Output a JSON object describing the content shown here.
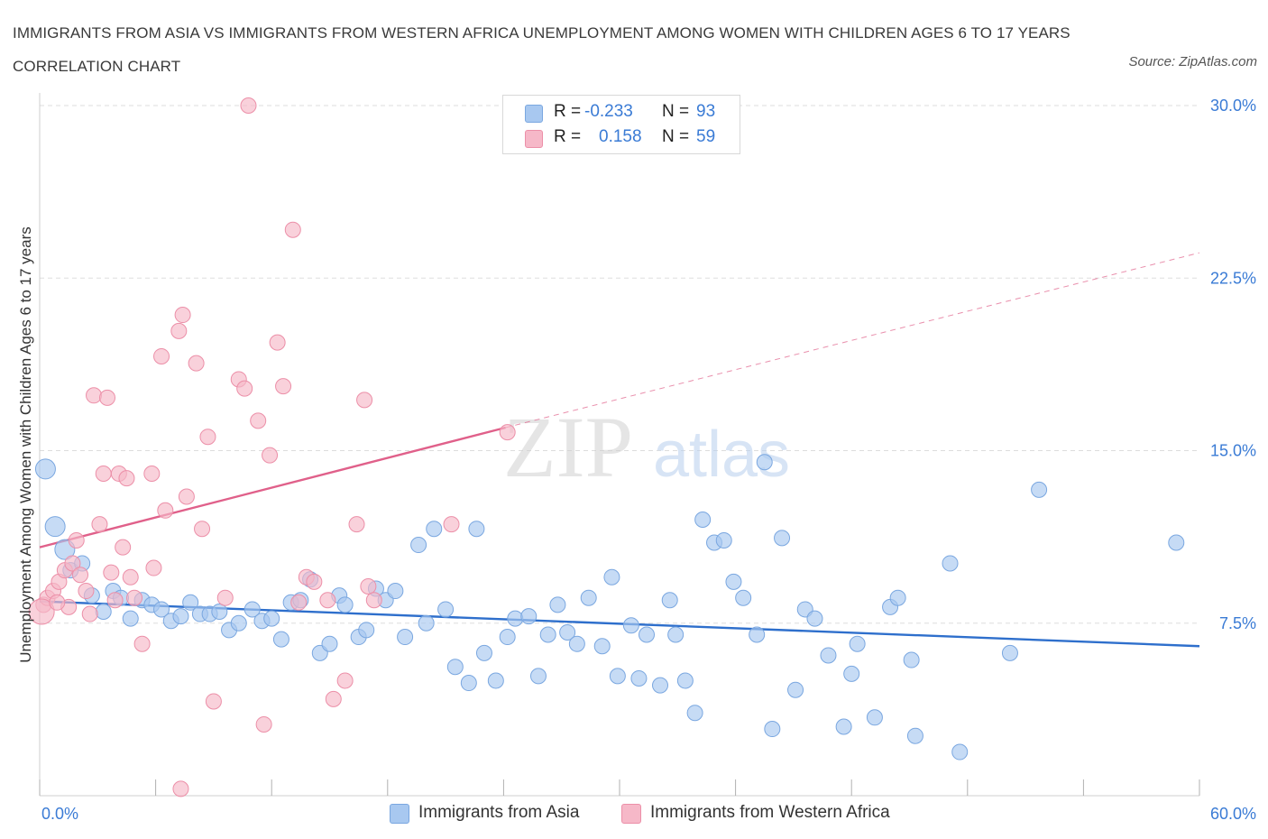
{
  "title": "IMMIGRANTS FROM ASIA VS IMMIGRANTS FROM WESTERN AFRICA UNEMPLOYMENT AMONG WOMEN WITH CHILDREN AGES 6 TO 17 YEARS CORRELATION CHART",
  "source": "Source: ZipAtlas.com",
  "watermark": {
    "zip": "ZIP",
    "atlas": "atlas"
  },
  "colors": {
    "asia_fill": "#a8c8f0",
    "asia_stroke": "#7aa7e0",
    "asia_line": "#2e6fcc",
    "africa_fill": "#f6b8c8",
    "africa_stroke": "#ec8fa8",
    "africa_line": "#e0608a",
    "value_text": "#3a7bd5",
    "grid": "#dddddd"
  },
  "legend": {
    "rows": [
      {
        "r_label": "R =",
        "r_value": "-0.233",
        "n_label": "N =",
        "n_value": "93",
        "swatch": "asia"
      },
      {
        "r_label": "R =",
        "r_value": "0.158",
        "n_label": "N =",
        "n_value": "59",
        "swatch": "africa"
      }
    ]
  },
  "bottom_legend": [
    {
      "label": "Immigrants from Asia",
      "swatch": "asia"
    },
    {
      "label": "Immigrants from Western Africa",
      "swatch": "africa"
    }
  ],
  "chart_data": {
    "type": "scatter",
    "title": "IMMIGRANTS FROM ASIA VS IMMIGRANTS FROM WESTERN AFRICA UNEMPLOYMENT AMONG WOMEN WITH CHILDREN AGES 6 TO 17 YEARS CORRELATION CHART",
    "xlabel": "",
    "ylabel": "Unemployment Among Women with Children Ages 6 to 17 years",
    "xlim": [
      0,
      60
    ],
    "ylim": [
      0,
      30
    ],
    "x_tick_labels": [
      "0.0%",
      "60.0%"
    ],
    "y_tick_labels": [
      "7.5%",
      "15.0%",
      "22.5%",
      "30.0%"
    ],
    "y_ticks": [
      7.5,
      15.0,
      22.5,
      30.0
    ],
    "grid": true,
    "series": [
      {
        "name": "Immigrants from Asia",
        "color": "asia",
        "R": -0.233,
        "N": 93,
        "trend": {
          "x": [
            0,
            60
          ],
          "y": [
            8.45,
            6.5
          ],
          "dashed_extension": false
        },
        "points": [
          [
            0.3,
            14.2
          ],
          [
            0.8,
            11.7
          ],
          [
            1.3,
            10.7
          ],
          [
            1.6,
            9.8
          ],
          [
            2.2,
            10.1
          ],
          [
            2.7,
            8.7
          ],
          [
            3.3,
            8.0
          ],
          [
            3.8,
            8.9
          ],
          [
            4.2,
            8.6
          ],
          [
            4.7,
            7.7
          ],
          [
            5.3,
            8.5
          ],
          [
            5.8,
            8.3
          ],
          [
            6.3,
            8.1
          ],
          [
            6.8,
            7.6
          ],
          [
            7.3,
            7.8
          ],
          [
            7.8,
            8.4
          ],
          [
            8.3,
            7.9
          ],
          [
            8.8,
            7.9
          ],
          [
            9.3,
            8.0
          ],
          [
            9.8,
            7.2
          ],
          [
            10.3,
            7.5
          ],
          [
            11.0,
            8.1
          ],
          [
            11.5,
            7.6
          ],
          [
            12.0,
            7.7
          ],
          [
            12.5,
            6.8
          ],
          [
            13.0,
            8.4
          ],
          [
            13.5,
            8.5
          ],
          [
            14.0,
            9.4
          ],
          [
            14.5,
            6.2
          ],
          [
            15.0,
            6.6
          ],
          [
            15.5,
            8.7
          ],
          [
            15.8,
            8.3
          ],
          [
            16.5,
            6.9
          ],
          [
            16.9,
            7.2
          ],
          [
            17.4,
            9.0
          ],
          [
            17.9,
            8.5
          ],
          [
            18.4,
            8.9
          ],
          [
            18.9,
            6.9
          ],
          [
            19.6,
            10.9
          ],
          [
            20.0,
            7.5
          ],
          [
            20.4,
            11.6
          ],
          [
            21.0,
            8.1
          ],
          [
            21.5,
            5.6
          ],
          [
            22.2,
            4.9
          ],
          [
            22.6,
            11.6
          ],
          [
            23.0,
            6.2
          ],
          [
            23.6,
            5.0
          ],
          [
            24.2,
            6.9
          ],
          [
            24.6,
            7.7
          ],
          [
            25.3,
            7.8
          ],
          [
            25.8,
            5.2
          ],
          [
            26.3,
            7.0
          ],
          [
            26.8,
            8.3
          ],
          [
            27.3,
            7.1
          ],
          [
            27.8,
            6.6
          ],
          [
            28.4,
            8.6
          ],
          [
            29.1,
            6.5
          ],
          [
            29.6,
            9.5
          ],
          [
            29.9,
            5.2
          ],
          [
            30.6,
            7.4
          ],
          [
            31.0,
            5.1
          ],
          [
            31.4,
            7.0
          ],
          [
            32.1,
            4.8
          ],
          [
            32.6,
            8.5
          ],
          [
            32.9,
            7.0
          ],
          [
            33.4,
            5.0
          ],
          [
            33.9,
            3.6
          ],
          [
            34.3,
            12.0
          ],
          [
            34.9,
            11.0
          ],
          [
            35.4,
            11.1
          ],
          [
            35.9,
            9.3
          ],
          [
            36.4,
            8.6
          ],
          [
            37.1,
            7.0
          ],
          [
            37.5,
            14.5
          ],
          [
            37.9,
            2.9
          ],
          [
            38.4,
            11.2
          ],
          [
            39.1,
            4.6
          ],
          [
            39.6,
            8.1
          ],
          [
            40.1,
            7.7
          ],
          [
            40.8,
            6.1
          ],
          [
            41.6,
            3.0
          ],
          [
            42.0,
            5.3
          ],
          [
            42.3,
            6.6
          ],
          [
            43.2,
            3.4
          ],
          [
            44.0,
            8.2
          ],
          [
            44.4,
            8.6
          ],
          [
            45.1,
            5.9
          ],
          [
            45.3,
            2.6
          ],
          [
            47.1,
            10.1
          ],
          [
            47.6,
            1.9
          ],
          [
            50.2,
            6.2
          ],
          [
            51.7,
            13.3
          ],
          [
            58.8,
            11.0
          ]
        ]
      },
      {
        "name": "Immigrants from Western Africa",
        "color": "africa",
        "R": 0.158,
        "N": 59,
        "trend": {
          "x": [
            0,
            24.1
          ],
          "y": [
            10.8,
            16.0
          ],
          "dashed_extension": true,
          "dashed_to": {
            "x": 60,
            "y": 23.6
          }
        },
        "points": [
          [
            0.2,
            8.3
          ],
          [
            0.4,
            8.6
          ],
          [
            0.7,
            8.9
          ],
          [
            1.0,
            9.3
          ],
          [
            1.3,
            9.8
          ],
          [
            1.5,
            8.2
          ],
          [
            1.7,
            10.1
          ],
          [
            1.9,
            11.1
          ],
          [
            2.1,
            9.6
          ],
          [
            2.4,
            8.9
          ],
          [
            2.6,
            7.9
          ],
          [
            2.8,
            17.4
          ],
          [
            3.1,
            11.8
          ],
          [
            3.3,
            14.0
          ],
          [
            3.5,
            17.3
          ],
          [
            3.7,
            9.7
          ],
          [
            3.9,
            8.5
          ],
          [
            4.1,
            14.0
          ],
          [
            4.3,
            10.8
          ],
          [
            4.5,
            13.8
          ],
          [
            4.7,
            9.5
          ],
          [
            4.9,
            8.6
          ],
          [
            5.3,
            6.6
          ],
          [
            5.8,
            14.0
          ],
          [
            5.9,
            9.9
          ],
          [
            6.3,
            19.1
          ],
          [
            6.5,
            12.4
          ],
          [
            7.2,
            20.2
          ],
          [
            7.4,
            20.9
          ],
          [
            7.6,
            13.0
          ],
          [
            8.1,
            18.8
          ],
          [
            8.4,
            11.6
          ],
          [
            8.7,
            15.6
          ],
          [
            9.0,
            4.1
          ],
          [
            9.6,
            8.6
          ],
          [
            10.3,
            18.1
          ],
          [
            10.6,
            17.7
          ],
          [
            10.8,
            30.0
          ],
          [
            11.3,
            16.3
          ],
          [
            11.6,
            3.1
          ],
          [
            11.9,
            14.8
          ],
          [
            12.3,
            19.7
          ],
          [
            12.6,
            17.8
          ],
          [
            13.1,
            24.6
          ],
          [
            13.4,
            8.4
          ],
          [
            13.8,
            9.5
          ],
          [
            14.2,
            9.3
          ],
          [
            14.9,
            8.5
          ],
          [
            15.2,
            4.2
          ],
          [
            15.8,
            5.0
          ],
          [
            16.4,
            11.8
          ],
          [
            16.8,
            17.2
          ],
          [
            17.0,
            9.1
          ],
          [
            17.3,
            8.5
          ],
          [
            7.3,
            0.3
          ],
          [
            21.3,
            11.8
          ],
          [
            24.2,
            15.8
          ],
          [
            0.1,
            8.0
          ],
          [
            0.9,
            8.4
          ]
        ]
      }
    ]
  }
}
